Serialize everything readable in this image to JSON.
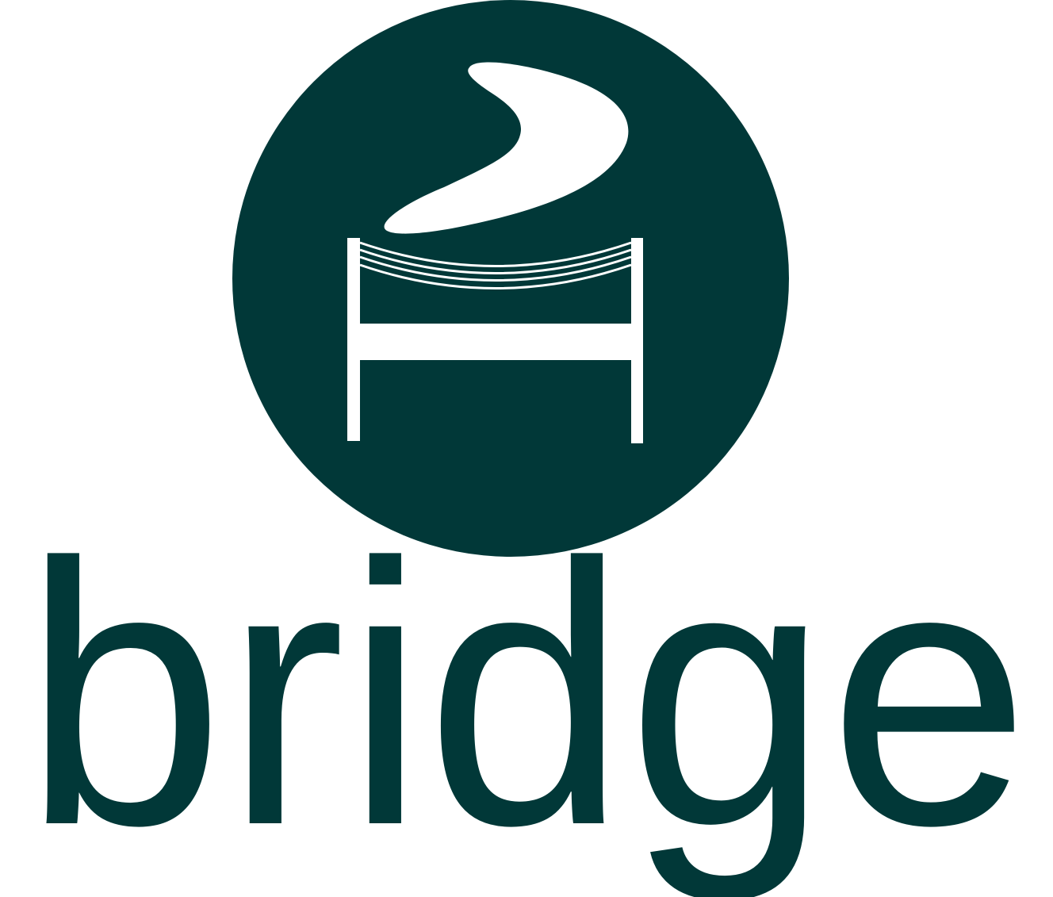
{
  "logo": {
    "name": "bridge logo",
    "wordmark": "bridge",
    "emblem_icon": "bridge-with-smoke-icon"
  },
  "colors": {
    "brand": "#013838",
    "background": "#ffffff",
    "emblem_foreground": "#ffffff"
  }
}
